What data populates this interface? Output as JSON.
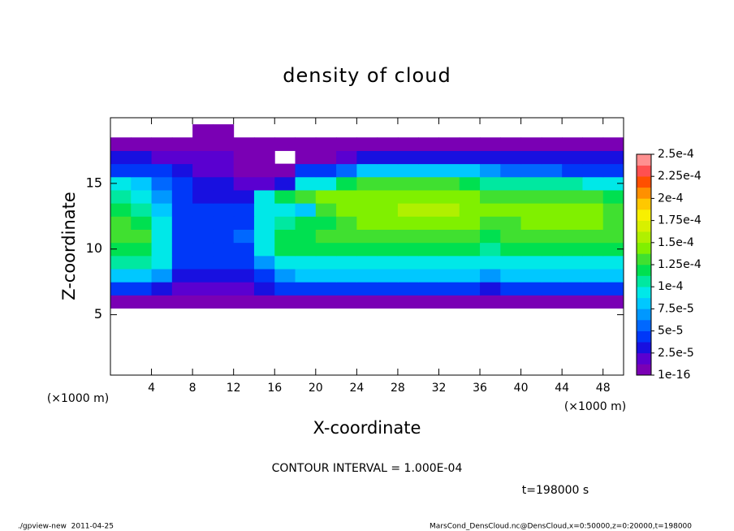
{
  "chart_data": {
    "type": "heatmap",
    "title": "density of cloud",
    "xlabel": "X-coordinate",
    "ylabel": "Z-coordinate",
    "x_unit": "(×1000 m)",
    "y_unit": "(×1000 m)",
    "xlim": [
      0,
      50
    ],
    "ylim": [
      0.4,
      20
    ],
    "xticks": [
      4,
      8,
      12,
      16,
      20,
      24,
      28,
      32,
      36,
      40,
      44,
      48
    ],
    "yticks": [
      5,
      10,
      15
    ],
    "x": [
      1,
      3,
      5,
      7,
      9,
      11,
      13,
      15,
      17,
      19,
      21,
      23,
      25,
      27,
      29,
      31,
      33,
      35,
      37,
      39,
      41,
      43,
      45,
      47,
      49
    ],
    "y": [
      6,
      7,
      8,
      9,
      10,
      11,
      12,
      13,
      14,
      15,
      16,
      17,
      18,
      19
    ],
    "z": [
      [
        1e-05,
        1e-05,
        1e-05,
        1e-05,
        1e-05,
        1e-05,
        1e-05,
        1e-05,
        1e-05,
        1e-05,
        1e-05,
        1e-05,
        1e-05,
        1e-05,
        1e-05,
        1e-05,
        1e-05,
        1e-05,
        1e-05,
        1e-05,
        1e-05,
        1e-05,
        1e-05,
        1e-05,
        1e-05
      ],
      [
        4e-05,
        4e-05,
        3e-05,
        2e-05,
        2e-05,
        2e-05,
        2e-05,
        3e-05,
        4e-05,
        4e-05,
        4e-05,
        4e-05,
        4e-05,
        4e-05,
        4e-05,
        4e-05,
        4e-05,
        4e-05,
        3e-05,
        4e-05,
        4e-05,
        4e-05,
        4e-05,
        4e-05,
        4e-05
      ],
      [
        8e-05,
        8e-05,
        7e-05,
        3e-05,
        3e-05,
        3e-05,
        3e-05,
        5e-05,
        7e-05,
        8e-05,
        8e-05,
        8e-05,
        8e-05,
        8e-05,
        8e-05,
        8e-05,
        8e-05,
        8e-05,
        7e-05,
        8e-05,
        8e-05,
        8e-05,
        8e-05,
        8e-05,
        8e-05
      ],
      [
        0.00011,
        0.00011,
        9e-05,
        4e-05,
        4e-05,
        4e-05,
        4e-05,
        7e-05,
        0.0001,
        0.0001,
        0.0001,
        0.0001,
        0.0001,
        0.0001,
        0.0001,
        0.0001,
        0.0001,
        0.0001,
        0.0001,
        0.0001,
        0.0001,
        0.0001,
        0.0001,
        0.0001,
        0.0001
      ],
      [
        0.00012,
        0.00012,
        0.0001,
        5e-05,
        5e-05,
        4e-05,
        5e-05,
        9e-05,
        0.00012,
        0.00012,
        0.00012,
        0.00012,
        0.00012,
        0.00012,
        0.00012,
        0.00012,
        0.00012,
        0.00012,
        0.00011,
        0.00012,
        0.00012,
        0.00012,
        0.00012,
        0.00012,
        0.00012
      ],
      [
        0.00013,
        0.00013,
        0.0001,
        5e-05,
        5e-05,
        4e-05,
        6e-05,
        9e-05,
        0.00012,
        0.00012,
        0.00013,
        0.00013,
        0.00013,
        0.00013,
        0.00013,
        0.00013,
        0.00013,
        0.00013,
        0.00012,
        0.00013,
        0.00013,
        0.00013,
        0.00013,
        0.00013,
        0.00013
      ],
      [
        0.00013,
        0.00012,
        9e-05,
        5e-05,
        5e-05,
        4e-05,
        4e-05,
        9e-05,
        0.00011,
        0.00012,
        0.00012,
        0.00013,
        0.00014,
        0.00015,
        0.00015,
        0.00015,
        0.00015,
        0.00014,
        0.00013,
        0.00013,
        0.00014,
        0.00014,
        0.00014,
        0.00014,
        0.00013
      ],
      [
        0.00012,
        0.00011,
        8e-05,
        5e-05,
        4e-05,
        4e-05,
        4e-05,
        9e-05,
        9e-05,
        8e-05,
        0.00013,
        0.00014,
        0.00015,
        0.00015,
        0.00016,
        0.00016,
        0.00016,
        0.00015,
        0.00014,
        0.00014,
        0.00014,
        0.00014,
        0.00014,
        0.00014,
        0.00013
      ],
      [
        0.00011,
        0.0001,
        7e-05,
        4e-05,
        3e-05,
        3e-05,
        3e-05,
        9e-05,
        0.00012,
        0.00013,
        0.00014,
        0.00014,
        0.00015,
        0.00015,
        0.00015,
        0.00015,
        0.00015,
        0.00015,
        0.00013,
        0.00013,
        0.00013,
        0.00013,
        0.00013,
        0.00013,
        0.00012
      ],
      [
        9e-05,
        8e-05,
        6e-05,
        4e-05,
        3e-05,
        3e-05,
        2e-05,
        2e-05,
        3e-05,
        9e-05,
        0.0001,
        0.00012,
        0.00013,
        0.00013,
        0.00013,
        0.00013,
        0.00013,
        0.00012,
        0.00011,
        0.00011,
        0.00011,
        0.00011,
        0.00011,
        0.0001,
        0.0001
      ],
      [
        5e-05,
        5e-05,
        4e-05,
        3e-05,
        2e-05,
        2e-05,
        1e-05,
        1e-05,
        1e-05,
        4e-05,
        5e-05,
        6e-05,
        8e-05,
        8e-05,
        8e-05,
        8e-05,
        8e-05,
        8e-05,
        7e-05,
        6e-05,
        6e-05,
        6e-05,
        5e-05,
        5e-05,
        5e-05
      ],
      [
        3e-05,
        3e-05,
        2e-05,
        2e-05,
        2e-05,
        2e-05,
        1e-05,
        1e-05,
        0,
        1e-05,
        1e-05,
        2e-05,
        3e-05,
        3e-05,
        3e-05,
        3e-05,
        3e-05,
        3e-05,
        3e-05,
        3e-05,
        3e-05,
        3e-05,
        3e-05,
        3e-05,
        3e-05
      ],
      [
        1e-05,
        1e-05,
        1e-05,
        1e-05,
        1e-05,
        1e-05,
        1e-05,
        1e-05,
        1e-05,
        1e-05,
        1e-05,
        1e-05,
        1e-05,
        1e-05,
        1e-05,
        1e-05,
        1e-05,
        1e-05,
        1e-05,
        1e-05,
        1e-05,
        1e-05,
        1e-05,
        1e-05,
        1e-05
      ],
      [
        0,
        0,
        0,
        0,
        1e-05,
        1e-05,
        0,
        0,
        0,
        0,
        0,
        0,
        0,
        0,
        0,
        0,
        0,
        0,
        0,
        0,
        0,
        0,
        0,
        0,
        0
      ]
    ],
    "clim": [
      1e-16,
      0.00025
    ],
    "cticks": [
      {
        "value": 1e-16,
        "label": "1e-16"
      },
      {
        "value": 2.5e-05,
        "label": "2.5e-5"
      },
      {
        "value": 5e-05,
        "label": "5e-5"
      },
      {
        "value": 7.5e-05,
        "label": "7.5e-5"
      },
      {
        "value": 0.0001,
        "label": "1e-4"
      },
      {
        "value": 0.000125,
        "label": "1.25e-4"
      },
      {
        "value": 0.00015,
        "label": "1.5e-4"
      },
      {
        "value": 0.000175,
        "label": "1.75e-4"
      },
      {
        "value": 0.0002,
        "label": "2e-4"
      },
      {
        "value": 0.000225,
        "label": "2.25e-4"
      },
      {
        "value": 0.00025,
        "label": "2.5e-4"
      }
    ],
    "colors": [
      "#7a00b4",
      "#5a00d0",
      "#1810e0",
      "#0038f8",
      "#0068ff",
      "#0098ff",
      "#00c8ff",
      "#00e8e8",
      "#00e8a0",
      "#00e050",
      "#40e030",
      "#80f000",
      "#b0f000",
      "#d8f000",
      "#f8f000",
      "#ffc800",
      "#ff9000",
      "#ff5000",
      "#ff5050",
      "#ff9090"
    ],
    "contour_note": "CONTOUR INTERVAL = 1.000E-04",
    "time_note": "t=198000 s",
    "footer_left": "./gpview-new  2011-04-25",
    "footer_right": "MarsCond_DensCloud.nc@DensCloud,x=0:50000,z=0:20000,t=198000"
  }
}
